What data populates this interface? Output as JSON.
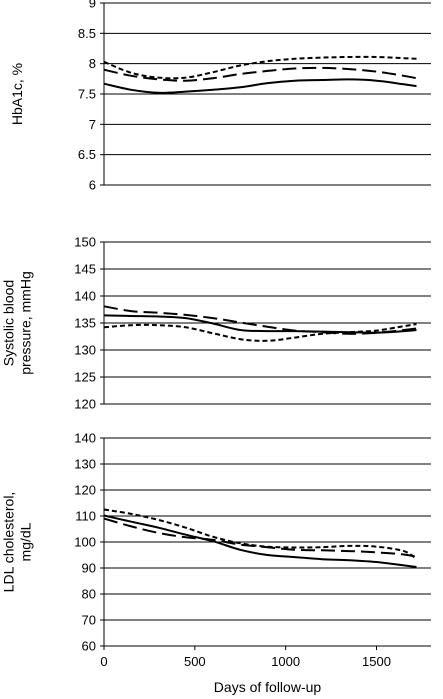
{
  "chart_data": [
    {
      "type": "line",
      "ylabel_lines": [
        "HbA1c, %"
      ],
      "ylim": [
        6,
        9
      ],
      "yticks": [
        "6",
        "6.5",
        "7",
        "7.5",
        "8",
        "8.5",
        "9"
      ],
      "ytick_values": [
        6,
        6.5,
        7,
        7.5,
        8,
        8.5,
        9
      ],
      "xlim": [
        0,
        1800
      ],
      "grid": true,
      "series": [
        {
          "style": "solid",
          "x": [
            0,
            150,
            300,
            450,
            600,
            750,
            900,
            1050,
            1200,
            1350,
            1500,
            1650,
            1720
          ],
          "y": [
            7.67,
            7.57,
            7.52,
            7.54,
            7.57,
            7.61,
            7.68,
            7.72,
            7.73,
            7.74,
            7.72,
            7.66,
            7.63
          ]
        },
        {
          "style": "long-dash",
          "x": [
            0,
            150,
            300,
            450,
            600,
            750,
            900,
            1050,
            1200,
            1350,
            1500,
            1650,
            1720
          ],
          "y": [
            7.9,
            7.8,
            7.74,
            7.72,
            7.76,
            7.83,
            7.88,
            7.92,
            7.93,
            7.91,
            7.87,
            7.8,
            7.76
          ]
        },
        {
          "style": "short-dash",
          "x": [
            0,
            150,
            300,
            450,
            600,
            750,
            900,
            1050,
            1200,
            1350,
            1500,
            1650,
            1720
          ],
          "y": [
            8.03,
            7.85,
            7.77,
            7.77,
            7.86,
            7.97,
            8.04,
            8.08,
            8.1,
            8.11,
            8.11,
            8.09,
            8.08
          ]
        }
      ]
    },
    {
      "type": "line",
      "ylabel_lines": [
        "Systolic blood",
        "pressure, mmHg"
      ],
      "ylim": [
        120,
        150
      ],
      "yticks": [
        "120",
        "125",
        "130",
        "135",
        "140",
        "145",
        "150"
      ],
      "ytick_values": [
        120,
        125,
        130,
        135,
        140,
        145,
        150
      ],
      "xlim": [
        0,
        1800
      ],
      "grid": true,
      "series": [
        {
          "style": "solid",
          "x": [
            0,
            150,
            300,
            450,
            600,
            750,
            900,
            1050,
            1200,
            1350,
            1500,
            1650,
            1720
          ],
          "y": [
            136.4,
            136.3,
            136.2,
            135.9,
            134.9,
            133.7,
            133.5,
            133.5,
            133.4,
            133.3,
            133.2,
            133.5,
            133.7
          ]
        },
        {
          "style": "long-dash",
          "x": [
            0,
            150,
            300,
            450,
            600,
            750,
            900,
            1050,
            1200,
            1350,
            1500,
            1650,
            1720
          ],
          "y": [
            138.1,
            137.2,
            136.9,
            136.5,
            135.9,
            135.1,
            134.3,
            133.6,
            133.3,
            133.0,
            133.2,
            133.7,
            134.0
          ]
        },
        {
          "style": "short-dash",
          "x": [
            0,
            150,
            300,
            450,
            600,
            750,
            900,
            1050,
            1200,
            1350,
            1500,
            1650,
            1720
          ],
          "y": [
            134.2,
            134.6,
            134.6,
            134.2,
            133.1,
            132.0,
            131.7,
            132.3,
            133.0,
            133.3,
            133.6,
            134.4,
            134.8
          ]
        }
      ]
    },
    {
      "type": "line",
      "ylabel_lines": [
        "LDL cholesterol,",
        "mg/dL"
      ],
      "ylim": [
        60,
        140
      ],
      "yticks": [
        "60",
        "70",
        "80",
        "90",
        "100",
        "110",
        "120",
        "130",
        "140"
      ],
      "ytick_values": [
        60,
        70,
        80,
        90,
        100,
        110,
        120,
        130,
        140
      ],
      "xlim": [
        0,
        1800
      ],
      "xticks": [
        "0",
        "500",
        "1000",
        "1500"
      ],
      "xtick_values": [
        0,
        500,
        1000,
        1500
      ],
      "xlabel": "Days of follow-up",
      "grid": true,
      "series": [
        {
          "style": "solid",
          "x": [
            0,
            150,
            300,
            450,
            600,
            750,
            900,
            1050,
            1200,
            1350,
            1500,
            1650,
            1720
          ],
          "y": [
            110.2,
            107.8,
            105.5,
            102.8,
            100.3,
            97.0,
            95.0,
            94.2,
            93.4,
            93.0,
            92.3,
            91.0,
            90.4
          ]
        },
        {
          "style": "long-dash",
          "x": [
            0,
            150,
            300,
            450,
            600,
            750,
            900,
            1050,
            1200,
            1350,
            1500,
            1650,
            1720
          ],
          "y": [
            109.0,
            106.0,
            103.5,
            101.8,
            100.8,
            99.0,
            98.0,
            97.0,
            96.8,
            96.5,
            96.0,
            95.2,
            94.3
          ]
        },
        {
          "style": "short-dash",
          "x": [
            0,
            150,
            300,
            450,
            600,
            750,
            900,
            1050,
            1200,
            1350,
            1500,
            1650,
            1720
          ],
          "y": [
            112.5,
            110.8,
            108.5,
            105.5,
            102.0,
            99.5,
            98.2,
            97.9,
            98.0,
            98.5,
            98.2,
            96.5,
            93.5
          ]
        }
      ]
    }
  ]
}
